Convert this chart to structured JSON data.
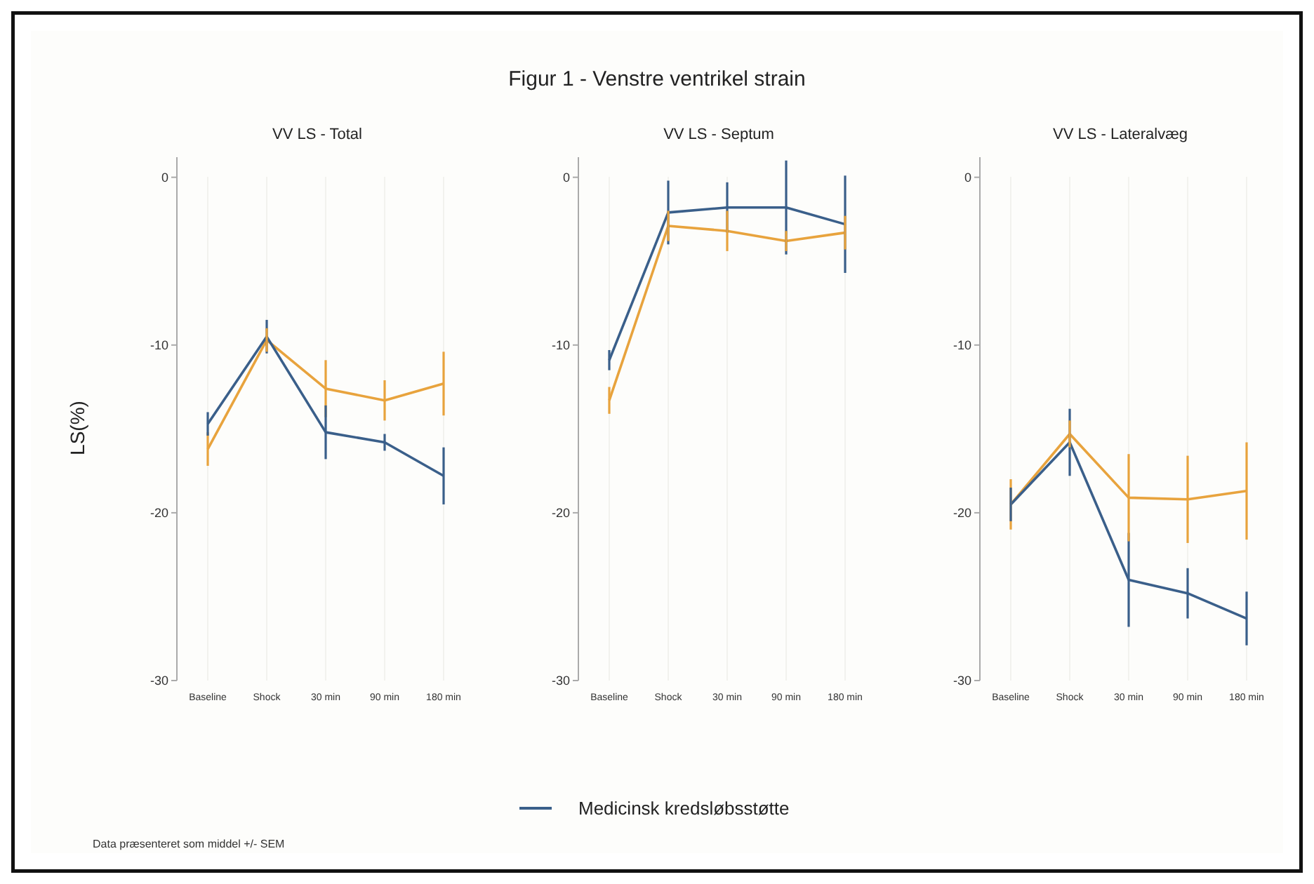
{
  "chart_data": [
    {
      "type": "line",
      "title": "VV LS - Total",
      "ylabel": "LS(%)",
      "annotations": [
        "Figur 1 - Venstre ventrikel strain",
        "Data præsenteret som middel +/- SEM"
      ],
      "categories": [
        "Baseline",
        "Shock",
        "30 min",
        "90 min",
        "180 min"
      ],
      "ylim": [
        -30,
        1.2
      ],
      "yticks": [
        0,
        -10,
        -20,
        -30
      ],
      "grid": "x",
      "legend": "bottom",
      "marker": "none",
      "series": [
        {
          "color": "#e8a33d",
          "values": [
            -16.2,
            -9.7,
            -12.6,
            -13.3,
            -12.3
          ],
          "errors": [
            1.0,
            0.7,
            1.7,
            1.2,
            1.9
          ]
        },
        {
          "name": "Medicinsk kredsløbsstøtte",
          "color": "#3a5f8a",
          "values": [
            -14.7,
            -9.5,
            -15.2,
            -15.8,
            -17.8
          ],
          "errors": [
            0.7,
            1.0,
            1.6,
            0.5,
            1.7
          ]
        }
      ]
    },
    {
      "type": "line",
      "title": "VV LS - Septum",
      "categories": [
        "Baseline",
        "Shock",
        "30 min",
        "90 min",
        "180 min"
      ],
      "ylim": [
        -30,
        1.2
      ],
      "yticks": [
        0,
        -10,
        -20,
        -30
      ],
      "grid": "x",
      "marker": "none",
      "series": [
        {
          "color": "#e8a33d",
          "values": [
            -13.3,
            -2.9,
            -3.2,
            -3.8,
            -3.3
          ],
          "errors": [
            0.8,
            0.9,
            1.2,
            0.6,
            1.0
          ]
        },
        {
          "name": "Medicinsk kredsløbsstøtte",
          "color": "#3a5f8a",
          "values": [
            -10.9,
            -2.1,
            -1.8,
            -1.8,
            -2.8
          ],
          "errors": [
            0.6,
            1.9,
            1.5,
            2.8,
            2.9
          ]
        }
      ]
    },
    {
      "type": "line",
      "title": "VV LS - Lateralvæg",
      "categories": [
        "Baseline",
        "Shock",
        "30 min",
        "90 min",
        "180 min"
      ],
      "ylim": [
        -30,
        1.2
      ],
      "yticks": [
        0,
        -10,
        -20,
        -30
      ],
      "grid": "x",
      "marker": "none",
      "series": [
        {
          "color": "#e8a33d",
          "values": [
            -19.5,
            -15.3,
            -19.1,
            -19.2,
            -18.7
          ],
          "errors": [
            1.5,
            0.8,
            2.6,
            2.6,
            2.9
          ]
        },
        {
          "name": "Medicinsk kredsløbsstøtte",
          "color": "#3a5f8a",
          "values": [
            -19.5,
            -15.8,
            -24.0,
            -24.8,
            -26.3
          ],
          "errors": [
            1.0,
            2.0,
            2.8,
            1.5,
            1.6
          ]
        }
      ]
    }
  ]
}
